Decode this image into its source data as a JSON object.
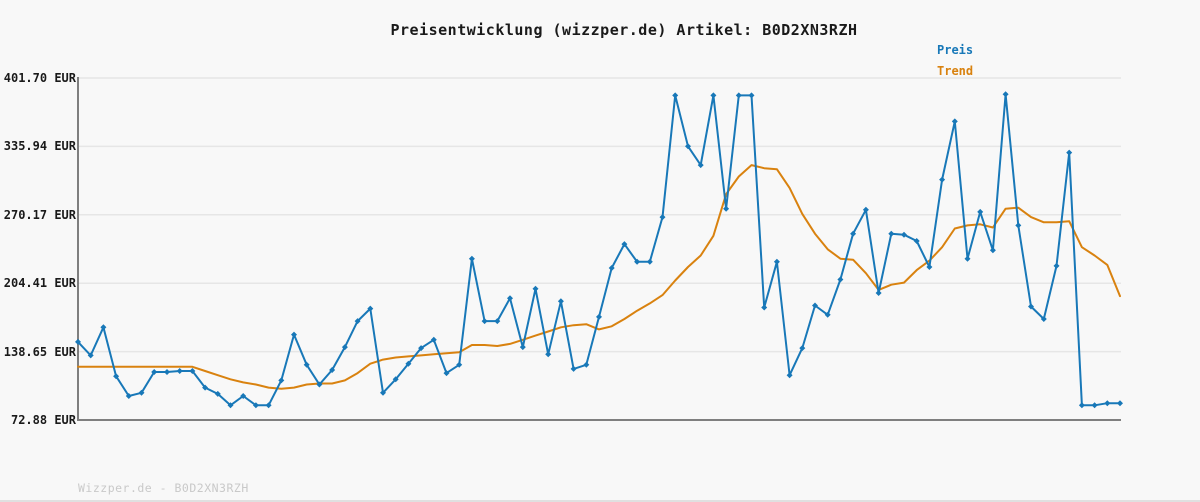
{
  "header": {
    "title": "Preisentwicklung (wizzper.de) Artikel: B0D2XN3RZH"
  },
  "legend": {
    "price_label": "Preis",
    "trend_label": "Trend"
  },
  "footer": {
    "text": "Wizzper.de - B0D2XN3RZH"
  },
  "colors": {
    "price": "#1878b8",
    "trend": "#d9820f",
    "background": "#f8f8f8",
    "grid": "#e6e6e6",
    "axis": "#7f7f7f",
    "title_text": "#1a1a1a",
    "tick_text": "#1a1a1a",
    "footer_text": "#c9c9c9"
  },
  "chart_data": {
    "type": "line",
    "title": "Preisentwicklung (wizzper.de) Artikel: B0D2XN3RZH",
    "unit": "EUR",
    "grid": "horizontal-only",
    "legend_position": "top-right",
    "x_tick_labels": [],
    "ylim": [
      72.88,
      401.7
    ],
    "ytick_values": [
      401.7,
      335.94,
      270.17,
      204.41,
      138.65,
      72.88
    ],
    "ytick_labels": [
      "401.70 EUR",
      "335.94 EUR",
      "270.17 EUR",
      "204.41 EUR",
      "138.65 EUR",
      "72.88 EUR"
    ],
    "series": [
      {
        "name": "Trend",
        "color": "#d9820f",
        "marker": "none",
        "values": [
          124,
          124,
          124,
          124,
          124,
          124,
          124,
          124,
          124,
          124,
          120,
          116,
          112,
          109,
          107,
          104,
          103,
          104,
          107,
          108,
          108,
          111,
          118,
          127,
          131,
          133,
          134,
          135,
          136,
          137,
          138,
          145,
          145,
          144,
          146,
          150,
          154,
          158,
          162,
          164,
          165,
          160,
          163,
          170,
          178,
          185,
          193,
          207,
          220,
          231,
          250,
          290,
          307,
          318,
          315,
          314,
          296,
          271,
          252,
          237,
          228,
          227,
          214,
          198,
          203,
          205,
          217,
          226,
          239,
          257,
          260,
          261,
          258,
          276,
          277,
          268,
          263,
          263,
          264,
          239,
          231,
          222,
          192
        ]
      },
      {
        "name": "Preis",
        "color": "#1878b8",
        "marker": "diamond",
        "values": [
          148,
          135,
          162,
          115,
          96,
          99,
          119,
          119,
          120,
          120,
          104,
          98,
          87,
          96,
          87,
          87,
          111,
          155,
          126,
          107,
          121,
          143,
          168,
          180,
          99,
          112,
          127,
          142,
          150,
          118,
          126,
          228,
          168,
          168,
          190,
          143,
          199,
          136,
          187,
          122,
          126,
          172,
          219,
          242,
          225,
          225,
          268,
          385,
          336,
          318,
          385,
          276,
          385,
          385,
          181,
          225,
          116,
          142,
          183,
          174,
          208,
          252,
          275,
          195,
          252,
          251,
          245,
          220,
          304,
          360,
          228,
          273,
          236,
          386,
          260,
          182,
          170,
          221,
          330,
          87,
          87,
          89,
          89
        ]
      }
    ]
  }
}
